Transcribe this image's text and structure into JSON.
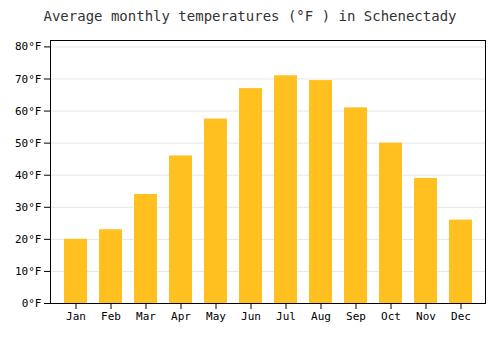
{
  "chart_data": {
    "type": "bar",
    "title": "Average monthly temperatures (°F ) in Schenectady",
    "categories": [
      "Jan",
      "Feb",
      "Mar",
      "Apr",
      "May",
      "Jun",
      "Jul",
      "Aug",
      "Sep",
      "Oct",
      "Nov",
      "Dec"
    ],
    "values": [
      20,
      23,
      34,
      46,
      57.5,
      67,
      71,
      69.5,
      61,
      50,
      39,
      26
    ],
    "color": "#FFC020",
    "ylim": [
      0,
      82
    ],
    "yticks": [
      {
        "value": 0,
        "label": "0°F"
      },
      {
        "value": 10,
        "label": "10°F"
      },
      {
        "value": 20,
        "label": "20°F"
      },
      {
        "value": 30,
        "label": "30°F"
      },
      {
        "value": 40,
        "label": "40°F"
      },
      {
        "value": 50,
        "label": "50°F"
      },
      {
        "value": 60,
        "label": "60°F"
      },
      {
        "value": 70,
        "label": "70°F"
      },
      {
        "value": 80,
        "label": "80°F"
      }
    ],
    "grid": true
  }
}
